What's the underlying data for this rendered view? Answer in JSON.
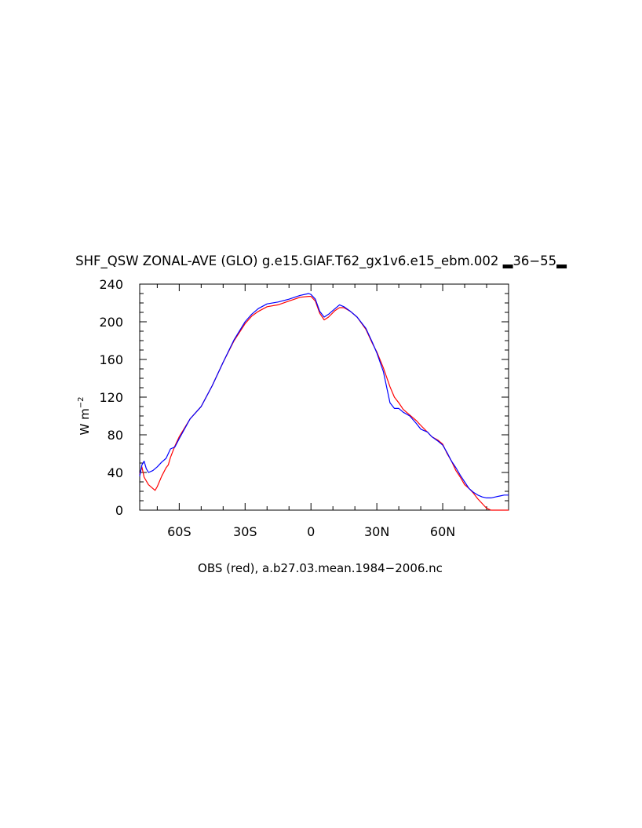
{
  "chart_data": {
    "type": "line",
    "title": "SHF_QSW ZONAL-AVE (GLO) g.e15.GIAF.T62_gx1v6.e15_ebm.002 ▂36−55▂",
    "xlabel": "OBS (red), a.b27.03.mean.1984−2006.nc",
    "ylabel": "W m",
    "ylabel_superscript": "−2",
    "xlim": [
      -78,
      90
    ],
    "ylim": [
      0,
      240
    ],
    "grid": false,
    "x_major_ticks": [
      -60,
      -30,
      0,
      30,
      60
    ],
    "x_tick_labels": [
      "60S",
      "30S",
      "0",
      "30N",
      "60N"
    ],
    "x_minor_step": 10,
    "y_major_ticks": [
      0,
      40,
      80,
      120,
      160,
      200,
      240
    ],
    "y_tick_labels": [
      "0",
      "40",
      "80",
      "120",
      "160",
      "200",
      "240"
    ],
    "y_minor_step": 10,
    "series": [
      {
        "color": "#ff0000",
        "x": [
          -78,
          -77,
          -76,
          -74,
          -72,
          -71,
          -70,
          -68,
          -66,
          -65,
          -64,
          -62,
          -60,
          -55,
          -50,
          -45,
          -40,
          -35,
          -30,
          -27,
          -24,
          -20,
          -15,
          -10,
          -5,
          -1,
          0,
          2,
          4,
          6,
          8,
          11,
          13,
          15,
          18,
          21,
          25,
          28,
          30,
          33,
          36,
          38,
          40,
          42,
          45,
          48,
          50,
          53,
          55,
          58,
          60,
          62,
          64,
          66,
          68,
          70,
          72,
          74,
          76,
          78,
          80,
          82,
          84,
          86,
          88,
          90
        ],
        "y": [
          38,
          46,
          35,
          27,
          23,
          21,
          25,
          36,
          45,
          48,
          56,
          68,
          78,
          97,
          110,
          132,
          157,
          180,
          198,
          206,
          211,
          216,
          218,
          222,
          226,
          227,
          227,
          222,
          209,
          202,
          205,
          212,
          215,
          215,
          211,
          205,
          192,
          177,
          168,
          151,
          131,
          120,
          114,
          107,
          101,
          95,
          90,
          83,
          78,
          74,
          70,
          60,
          52,
          42,
          35,
          27,
          23,
          18,
          12,
          7,
          2,
          0,
          0,
          0,
          0,
          0
        ]
      },
      {
        "color": "#0000ff",
        "x": [
          -78,
          -77,
          -76,
          -75,
          -74,
          -72,
          -70,
          -68,
          -66,
          -65,
          -64,
          -62,
          -60,
          -55,
          -50,
          -45,
          -40,
          -35,
          -30,
          -27,
          -24,
          -20,
          -15,
          -10,
          -5,
          -1,
          0,
          2,
          4,
          6,
          8,
          11,
          13,
          15,
          18,
          21,
          25,
          28,
          30,
          33,
          36,
          38,
          40,
          42,
          45,
          48,
          50,
          53,
          55,
          58,
          60,
          62,
          64,
          66,
          68,
          70,
          72,
          74,
          76,
          78,
          80,
          82,
          84,
          86,
          88,
          90
        ],
        "y": [
          36,
          48,
          52,
          44,
          40,
          42,
          46,
          51,
          55,
          60,
          65,
          67,
          76,
          97,
          110,
          132,
          157,
          181,
          200,
          208,
          214,
          219,
          221,
          224,
          228,
          230,
          229,
          224,
          211,
          205,
          208,
          214,
          218,
          216,
          211,
          205,
          193,
          178,
          167,
          147,
          114,
          108,
          108,
          104,
          100,
          92,
          86,
          83,
          78,
          73,
          69,
          61,
          52,
          45,
          37,
          30,
          23,
          19,
          16,
          14,
          13,
          13,
          14,
          15,
          16,
          16
        ]
      }
    ]
  }
}
